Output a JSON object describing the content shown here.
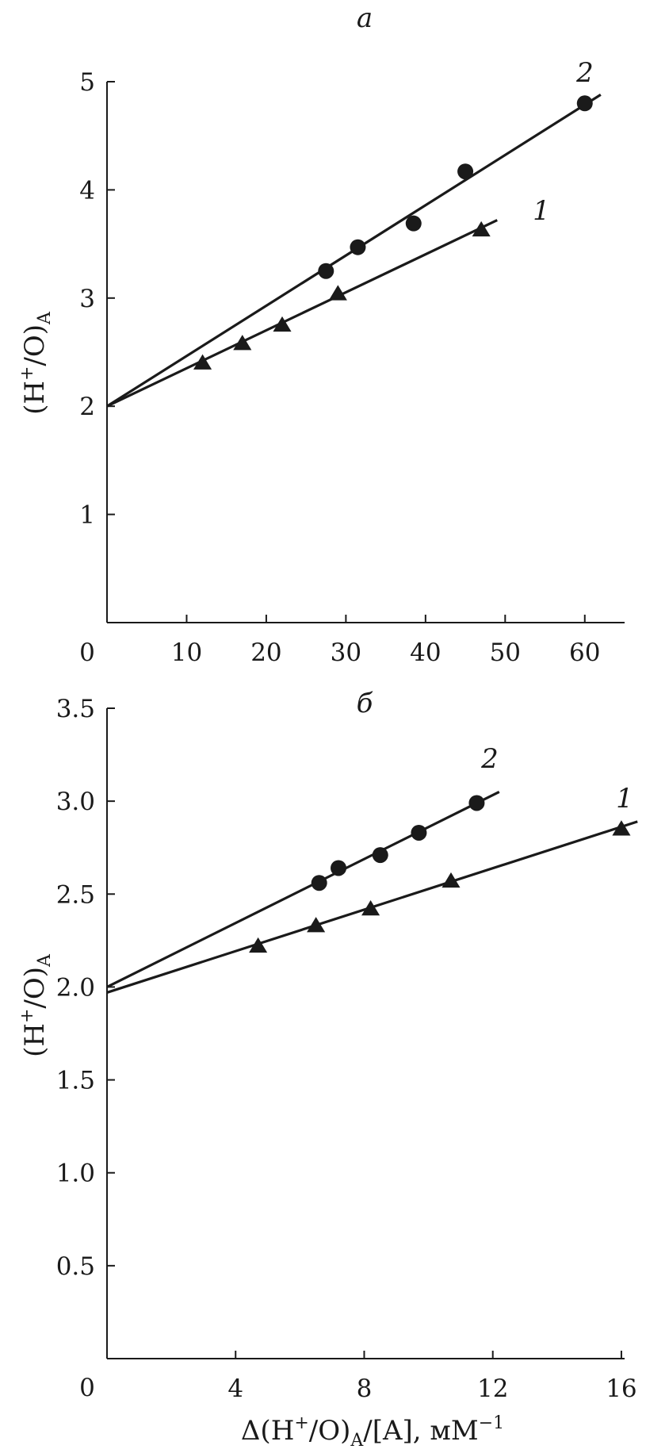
{
  "chart_data": [
    {
      "type": "scatter",
      "panel_label": "a",
      "xlabel": "",
      "ylabel": "(H+/O)A",
      "xlim": [
        0,
        65
      ],
      "ylim": [
        0,
        5
      ],
      "origin_label": "0",
      "x_ticks": [
        10,
        20,
        30,
        40,
        50,
        60
      ],
      "y_ticks": [
        1,
        2,
        3,
        4,
        5
      ],
      "grid": false,
      "series": [
        {
          "name": "1",
          "marker": "triangle",
          "points": [
            [
              12,
              2.4
            ],
            [
              17,
              2.58
            ],
            [
              22,
              2.75
            ],
            [
              29,
              3.04
            ],
            [
              47,
              3.63
            ]
          ],
          "fit_line": [
            [
              0,
              2.0
            ],
            [
              49,
              3.72
            ]
          ]
        },
        {
          "name": "2",
          "marker": "circle",
          "points": [
            [
              27.5,
              3.25
            ],
            [
              31.5,
              3.47
            ],
            [
              38.5,
              3.69
            ],
            [
              45,
              4.17
            ],
            [
              60,
              4.8
            ]
          ],
          "fit_line": [
            [
              0,
              2.0
            ],
            [
              62,
              4.88
            ]
          ]
        }
      ]
    },
    {
      "type": "scatter",
      "panel_label": "б",
      "xlabel": "Δ(H+/O)A/[A], мМ−1",
      "ylabel": "(H+/O)A",
      "xlim": [
        0,
        16
      ],
      "ylim": [
        0,
        3.5
      ],
      "origin_label": "0",
      "x_ticks": [
        4,
        8,
        12,
        16
      ],
      "y_ticks": [
        0.5,
        1.0,
        1.5,
        2.0,
        2.5,
        3.0,
        3.5
      ],
      "y_tick_labels": [
        "0.5",
        "1.0",
        "1.5",
        "2.0",
        "2.5",
        "3.0",
        "3.5"
      ],
      "grid": false,
      "series": [
        {
          "name": "1",
          "marker": "triangle",
          "points": [
            [
              4.7,
              2.22
            ],
            [
              6.5,
              2.33
            ],
            [
              8.2,
              2.42
            ],
            [
              10.7,
              2.57
            ],
            [
              16.0,
              2.85
            ]
          ],
          "fit_line": [
            [
              0,
              1.97
            ],
            [
              16.5,
              2.89
            ]
          ]
        },
        {
          "name": "2",
          "marker": "circle",
          "points": [
            [
              6.6,
              2.56
            ],
            [
              7.2,
              2.64
            ],
            [
              8.5,
              2.71
            ],
            [
              9.7,
              2.83
            ],
            [
              11.5,
              2.99
            ]
          ],
          "fit_line": [
            [
              0,
              2.0
            ],
            [
              12.2,
              3.05
            ]
          ]
        }
      ]
    }
  ],
  "ylabel_parts": {
    "base": "(H",
    "sup": "+",
    "mid": "/O)",
    "sub": "A"
  },
  "xlabel_parts": {
    "base": "Δ(H",
    "sup": "+",
    "mid": "/O)",
    "sub": "A",
    "tail": "/[A], мМ",
    "sup2": "−1"
  }
}
